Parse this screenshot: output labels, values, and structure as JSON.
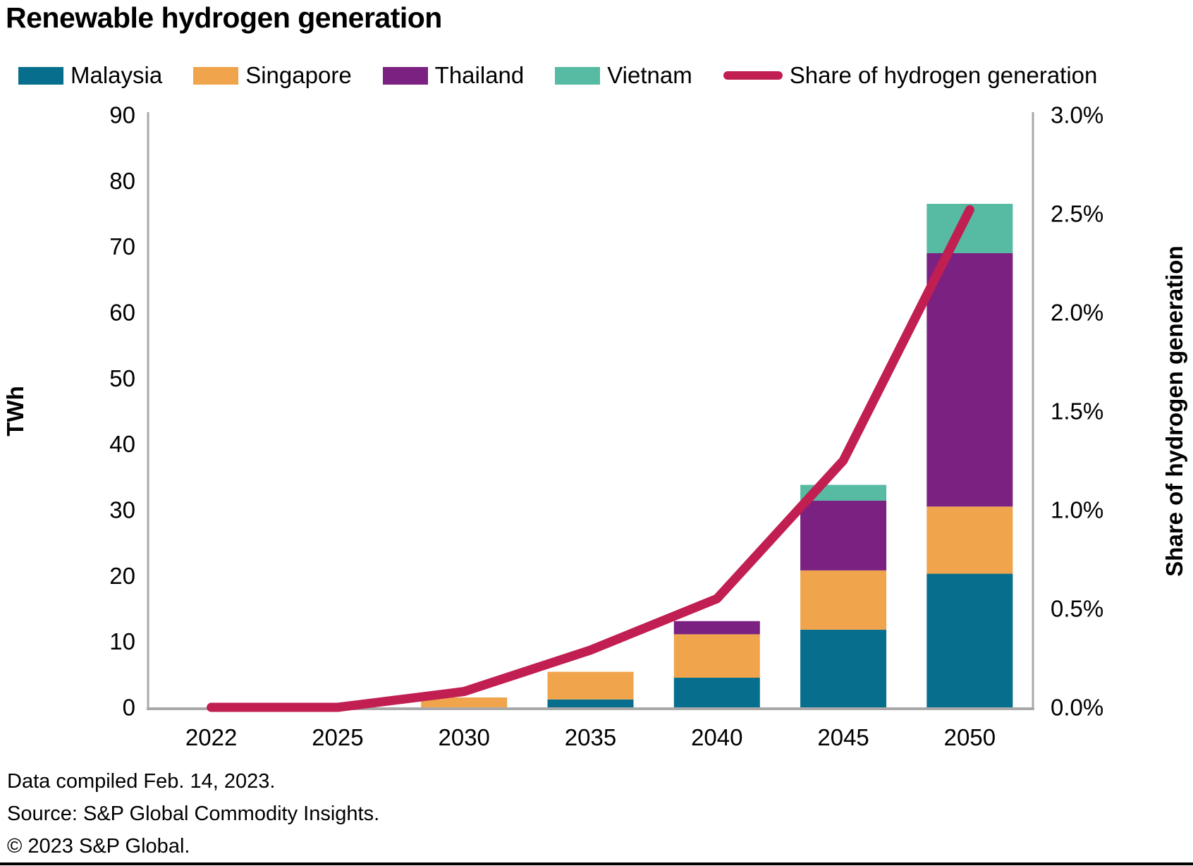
{
  "title": "Renewable hydrogen generation",
  "legend": {
    "items": [
      {
        "label": "Malaysia",
        "color": "#086e8d",
        "swatch": "box"
      },
      {
        "label": "Singapore",
        "color": "#f0a54d",
        "swatch": "box"
      },
      {
        "label": "Thailand",
        "color": "#7a2182",
        "swatch": "box"
      },
      {
        "label": "Vietnam",
        "color": "#56bba2",
        "swatch": "box"
      },
      {
        "label": "Share of hydrogen generation",
        "color": "#c11e52",
        "swatch": "line"
      }
    ]
  },
  "chart_data": {
    "type": "bar",
    "subtype": "stacked-bars-with-line",
    "categories": [
      "2022",
      "2025",
      "2030",
      "2035",
      "2040",
      "2045",
      "2050"
    ],
    "series": [
      {
        "name": "Malaysia",
        "color": "#086e8d",
        "values": [
          0,
          0,
          0,
          1.2,
          4.5,
          11.8,
          20.3
        ]
      },
      {
        "name": "Singapore",
        "color": "#f0a54d",
        "values": [
          0,
          0,
          1.5,
          4.2,
          6.6,
          9.0,
          10.2
        ]
      },
      {
        "name": "Thailand",
        "color": "#7a2182",
        "values": [
          0,
          0,
          0,
          0,
          2.0,
          10.6,
          38.5
        ]
      },
      {
        "name": "Vietnam",
        "color": "#56bba2",
        "values": [
          0,
          0,
          0,
          0,
          0,
          2.4,
          7.5
        ]
      }
    ],
    "line_series": {
      "name": "Share of hydrogen generation",
      "color": "#c11e52",
      "values_percent": [
        0.0,
        0.0,
        0.08,
        0.29,
        0.55,
        1.25,
        2.52
      ]
    },
    "left_axis": {
      "label": "TWh",
      "min": 0,
      "max": 90,
      "tick_step": 10,
      "ticks": [
        0,
        10,
        20,
        30,
        40,
        50,
        60,
        70,
        80,
        90
      ]
    },
    "right_axis": {
      "label": "Share of hydrogen generation",
      "min": 0,
      "max": 3.0,
      "tick_step": 0.5,
      "ticks": [
        "0.0%",
        "0.5%",
        "1.0%",
        "1.5%",
        "2.0%",
        "2.5%",
        "3.0%"
      ]
    },
    "grid": "off",
    "legend_position": "top",
    "axis_color": "#a9a9a9"
  },
  "footer": {
    "line1": "Data compiled Feb. 14, 2023.",
    "line2": "Source: S&P Global Commodity Insights.",
    "line3": "© 2023 S&P Global."
  }
}
